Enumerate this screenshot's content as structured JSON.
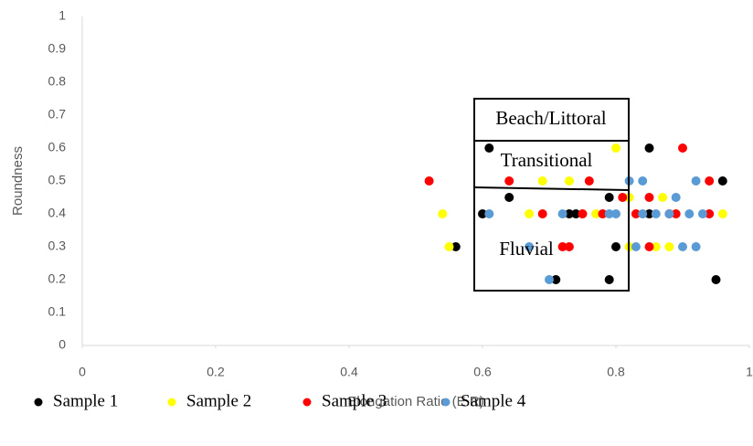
{
  "chart_data": {
    "type": "scatter",
    "x_label": "Elongation Ratio (E.R)",
    "y_label": "Roundness",
    "xlim": [
      0,
      1
    ],
    "ylim": [
      0,
      1
    ],
    "xticks": [
      0,
      0.2,
      0.4,
      0.6,
      0.8,
      1
    ],
    "yticks": [
      0,
      0.1,
      0.2,
      0.3,
      0.4,
      0.5,
      0.6,
      0.7,
      0.8,
      0.9,
      1
    ],
    "grid": false,
    "legend": "bottom",
    "annotations": [
      "Beach/Littoral",
      "Transitional",
      "Fluvial"
    ],
    "series": [
      {
        "name": "Sample 1",
        "color": "#000000",
        "x": [
          0.56,
          0.61,
          0.6,
          0.64,
          0.73,
          0.74,
          0.71,
          0.79,
          0.8,
          0.79,
          0.85,
          0.85,
          0.96,
          0.95
        ],
        "values": [
          0.3,
          0.6,
          0.4,
          0.45,
          0.4,
          0.4,
          0.2,
          0.45,
          0.3,
          0.2,
          0.6,
          0.4,
          0.5,
          0.2
        ]
      },
      {
        "name": "Sample 2",
        "color": "#ffff00",
        "x": [
          0.54,
          0.55,
          0.67,
          0.69,
          0.73,
          0.77,
          0.8,
          0.82,
          0.87,
          0.82,
          0.86,
          0.88,
          0.96
        ],
        "values": [
          0.4,
          0.3,
          0.4,
          0.5,
          0.5,
          0.4,
          0.6,
          0.45,
          0.45,
          0.3,
          0.3,
          0.3,
          0.4
        ]
      },
      {
        "name": "Sample 3",
        "color": "#ff0000",
        "x": [
          0.52,
          0.64,
          0.69,
          0.72,
          0.73,
          0.76,
          0.75,
          0.78,
          0.81,
          0.83,
          0.85,
          0.85,
          0.88,
          0.9,
          0.89,
          0.94,
          0.94
        ],
        "values": [
          0.5,
          0.5,
          0.4,
          0.3,
          0.3,
          0.5,
          0.4,
          0.4,
          0.45,
          0.4,
          0.45,
          0.3,
          0.4,
          0.6,
          0.4,
          0.5,
          0.4
        ]
      },
      {
        "name": "Sample 4",
        "color": "#5b9bd5",
        "x": [
          0.61,
          0.67,
          0.72,
          0.7,
          0.79,
          0.8,
          0.82,
          0.84,
          0.83,
          0.84,
          0.86,
          0.88,
          0.89,
          0.9,
          0.91,
          0.92,
          0.92,
          0.93
        ],
        "values": [
          0.4,
          0.3,
          0.4,
          0.2,
          0.4,
          0.4,
          0.5,
          0.5,
          0.3,
          0.4,
          0.4,
          0.4,
          0.45,
          0.3,
          0.4,
          0.5,
          0.3,
          0.4
        ]
      }
    ]
  }
}
